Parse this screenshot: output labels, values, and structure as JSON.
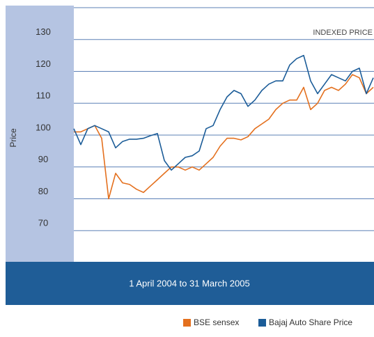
{
  "chart_data": {
    "type": "line",
    "title": "INDEXED PRICE",
    "y_label": "Price",
    "x_label": "1 April 2004 to 31 March 2005",
    "ylim": [
      60,
      140
    ],
    "yticks": [
      70,
      80,
      90,
      100,
      110,
      120,
      130
    ],
    "grid": true,
    "legend": "bottom-right",
    "series": [
      {
        "name": "BSE sensex",
        "color": "#e4701e",
        "values": [
          101,
          101,
          102,
          103,
          99,
          80,
          88,
          85,
          84.5,
          83,
          82,
          84,
          86,
          88,
          90,
          90,
          89,
          90,
          89,
          91,
          93,
          96.5,
          99,
          99,
          98.5,
          99.5,
          102,
          103.5,
          105,
          108,
          110,
          111,
          111,
          115,
          108,
          110,
          114,
          115,
          114,
          116,
          119,
          118,
          113,
          115
        ]
      },
      {
        "name": "Bajaj Auto Share Price",
        "color": "#1b5c98",
        "values": [
          102,
          97,
          102,
          103,
          102,
          101,
          96,
          98,
          98.7,
          98.7,
          99,
          99.8,
          100.5,
          92,
          89,
          91,
          93,
          93.5,
          95,
          102,
          103,
          108,
          112,
          114,
          113,
          109,
          111,
          114,
          116,
          117,
          117,
          122,
          124,
          125,
          117,
          113,
          116,
          119,
          118,
          117,
          120,
          121,
          113,
          118
        ]
      }
    ]
  }
}
